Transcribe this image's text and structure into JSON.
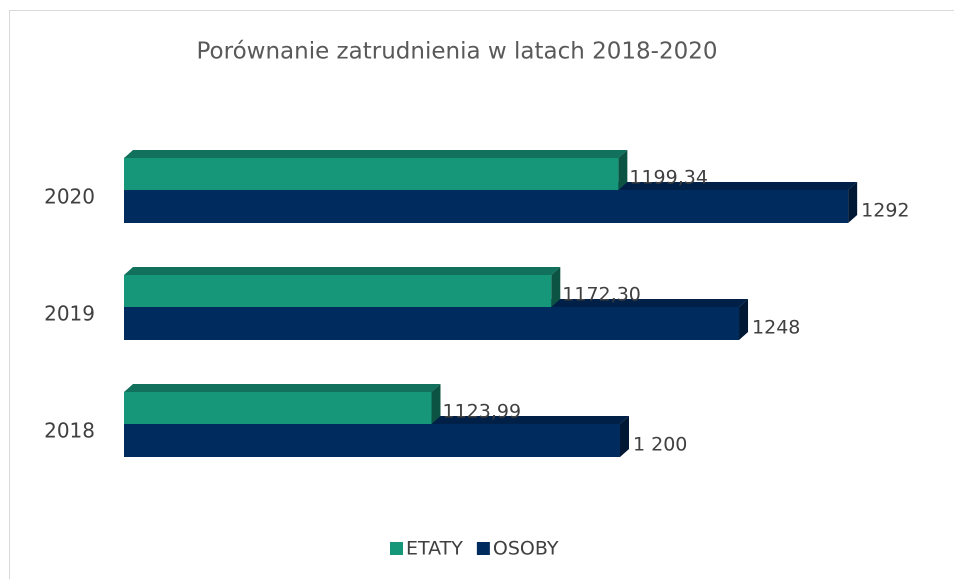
{
  "chart_data": {
    "type": "bar3d_horizontal",
    "title": "Porównanie zatrudnienia w latach 2018-2020",
    "categories": [
      "2018",
      "2019",
      "2020"
    ],
    "series": [
      {
        "name": "ETATY",
        "color": "#17977a",
        "values": [
          1123.99,
          1172.3,
          1199.34
        ],
        "value_labels": [
          "1123,99",
          "1172,30",
          "1199,34"
        ]
      },
      {
        "name": "OSOBY",
        "color": "#002b5e",
        "values": [
          1200,
          1248,
          1292
        ],
        "value_labels": [
          "1 200",
          "1248",
          "1292"
        ]
      }
    ],
    "xlim": [
      1000,
      1300
    ],
    "legend": "bottom"
  }
}
